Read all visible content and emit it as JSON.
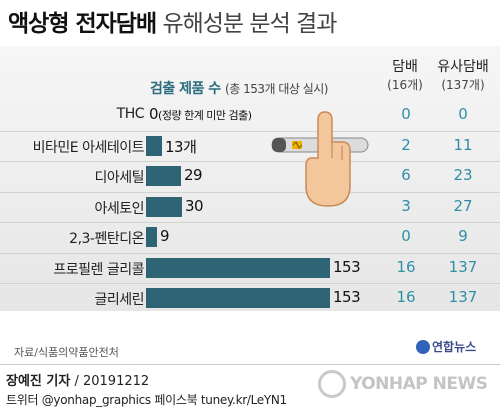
{
  "header": {
    "title_bold": "액상형 전자담배",
    "title_light": "유해성분 분석 결과"
  },
  "columns": {
    "detect_label": "검출 제품 수",
    "detect_sub": "(총 153개 대상 실시)",
    "cigarette_label": "담배",
    "cigarette_sub": "(16개)",
    "similar_label": "유사담배",
    "similar_sub": "(137개)"
  },
  "colors": {
    "bar": "#2f6474",
    "teal_number": "#2f8fa6"
  },
  "chart_data": {
    "type": "bar",
    "orientation": "horizontal",
    "title": "액상형 전자담배 유해성분 분석 결과",
    "xlabel": "검출 제품 수 (총 153개 대상 실시)",
    "xlim": [
      0,
      153
    ],
    "categories": [
      "THC",
      "비타민E 아세테이트",
      "디아세틸",
      "아세토인",
      "2,3-펜탄디온",
      "프로필렌 글리콜",
      "글리세린"
    ],
    "series": [
      {
        "name": "검출 제품 수",
        "values": [
          0,
          13,
          29,
          30,
          9,
          153,
          153
        ]
      }
    ],
    "value_labels": [
      "0",
      "13개",
      "29",
      "30",
      "9",
      "153",
      "153"
    ],
    "thc_note": "(정량 한계 미만 검출)",
    "table": {
      "cigarette": [
        "0",
        "2",
        "6",
        "3",
        "0",
        "16",
        "16"
      ],
      "similar": [
        "0",
        "11",
        "23",
        "27",
        "9",
        "137",
        "137"
      ]
    }
  },
  "footer": {
    "source": "자료/식품의약품안전처",
    "logo_small": "연합뉴스",
    "author": "장예진 기자",
    "date": "/ 20191212",
    "social": "트위터 @yonhap_graphics  페이스북 tuney.kr/LeYN1",
    "watermark": "YONHAP NEWS"
  }
}
